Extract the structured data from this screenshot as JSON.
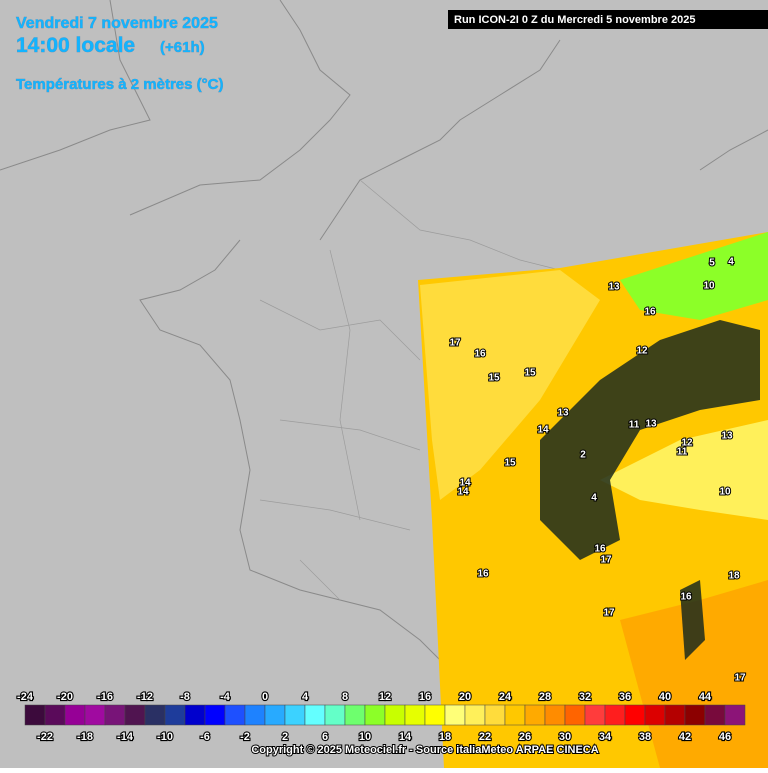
{
  "header": {
    "date": "Vendredi 7 novembre 2025",
    "time": "14:00 locale",
    "lead": "(+61h)",
    "parameter": "Températures à 2 mètres (°C)",
    "run": "Run ICON-2I 0 Z du Mercredi 5 novembre 2025"
  },
  "contour_labels": [
    17,
    16,
    15,
    15,
    13,
    16,
    12,
    11,
    14,
    13,
    13,
    11,
    12,
    2,
    15,
    14,
    4,
    16,
    17,
    16,
    18,
    16,
    17,
    17,
    10,
    10,
    5,
    4,
    13,
    14
  ],
  "legend": {
    "lim": [
      -24,
      48
    ],
    "top_labels": [
      -24,
      -20,
      -16,
      -12,
      -8,
      -4,
      0,
      4,
      8,
      12,
      16,
      20,
      24,
      28,
      32,
      36,
      40,
      44
    ],
    "bottom_labels": [
      -22,
      -18,
      -14,
      -10,
      -6,
      -2,
      2,
      6,
      10,
      14,
      18,
      22,
      26,
      30,
      34,
      38,
      42,
      46
    ],
    "colors": [
      "#3c0a3c",
      "#5a0a5a",
      "#960096",
      "#a00aa0",
      "#781478",
      "#501450",
      "#2a3064",
      "#1e3c9b",
      "#0000cd",
      "#0000ff",
      "#1e50ff",
      "#1e82ff",
      "#28aaff",
      "#3cd2ff",
      "#64ffff",
      "#64ffc8",
      "#6eff6e",
      "#8cff28",
      "#c8ff00",
      "#e6ff00",
      "#ffff00",
      "#ffff78",
      "#fff05a",
      "#ffdc3c",
      "#ffc800",
      "#ffaa00",
      "#ff8c00",
      "#ff6400",
      "#ff3c3c",
      "#ff1e1e",
      "#ff0000",
      "#dc0000",
      "#b40000",
      "#8c0000",
      "#780a3c",
      "#8c1478"
    ]
  },
  "footer": {
    "copyright": "Copyright © 2025 Meteociel.fr - Source italiaMeteo ARPAE CINECA"
  }
}
